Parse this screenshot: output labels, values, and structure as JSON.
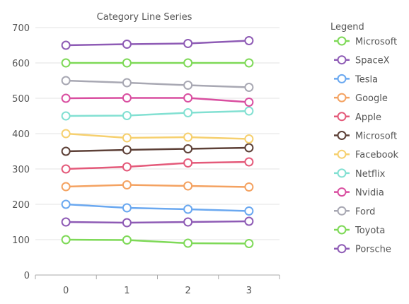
{
  "chart_data": {
    "type": "line",
    "title": "Category Line Series",
    "xlabel": "",
    "ylabel": "",
    "categories": [
      "0",
      "1",
      "2",
      "3"
    ],
    "ylim": [
      0,
      700
    ],
    "yticks": [
      0,
      100,
      200,
      300,
      400,
      500,
      600,
      700
    ],
    "grid": true,
    "legend": {
      "title": "Legend",
      "placement": "right"
    },
    "series": [
      {
        "name": "Microsoft",
        "color": "#7ed957",
        "values": [
          600,
          600,
          600,
          600
        ]
      },
      {
        "name": "SpaceX",
        "color": "#8e5bb5",
        "values": [
          650,
          653,
          655,
          663
        ]
      },
      {
        "name": "Tesla",
        "color": "#6aa8f0",
        "values": [
          200,
          190,
          186,
          181
        ]
      },
      {
        "name": "Google",
        "color": "#f4a261",
        "values": [
          250,
          255,
          252,
          249
        ]
      },
      {
        "name": "Apple",
        "color": "#e45a7a",
        "values": [
          300,
          306,
          317,
          320
        ]
      },
      {
        "name": "Microsoft",
        "color": "#5d4037",
        "values": [
          350,
          354,
          357,
          360
        ]
      },
      {
        "name": "Facebook",
        "color": "#f6d06f",
        "values": [
          400,
          388,
          390,
          385
        ]
      },
      {
        "name": "Netflix",
        "color": "#82e0d2",
        "values": [
          450,
          451,
          459,
          464
        ]
      },
      {
        "name": "Nvidia",
        "color": "#d94ea0",
        "values": [
          500,
          501,
          501,
          489
        ]
      },
      {
        "name": "Ford",
        "color": "#a8a8b3",
        "values": [
          550,
          544,
          537,
          531
        ]
      },
      {
        "name": "Toyota",
        "color": "#7ed957",
        "values": [
          100,
          99,
          90,
          89
        ]
      },
      {
        "name": "Porsche",
        "color": "#8e5bb5",
        "values": [
          150,
          148,
          150,
          152
        ]
      }
    ]
  }
}
